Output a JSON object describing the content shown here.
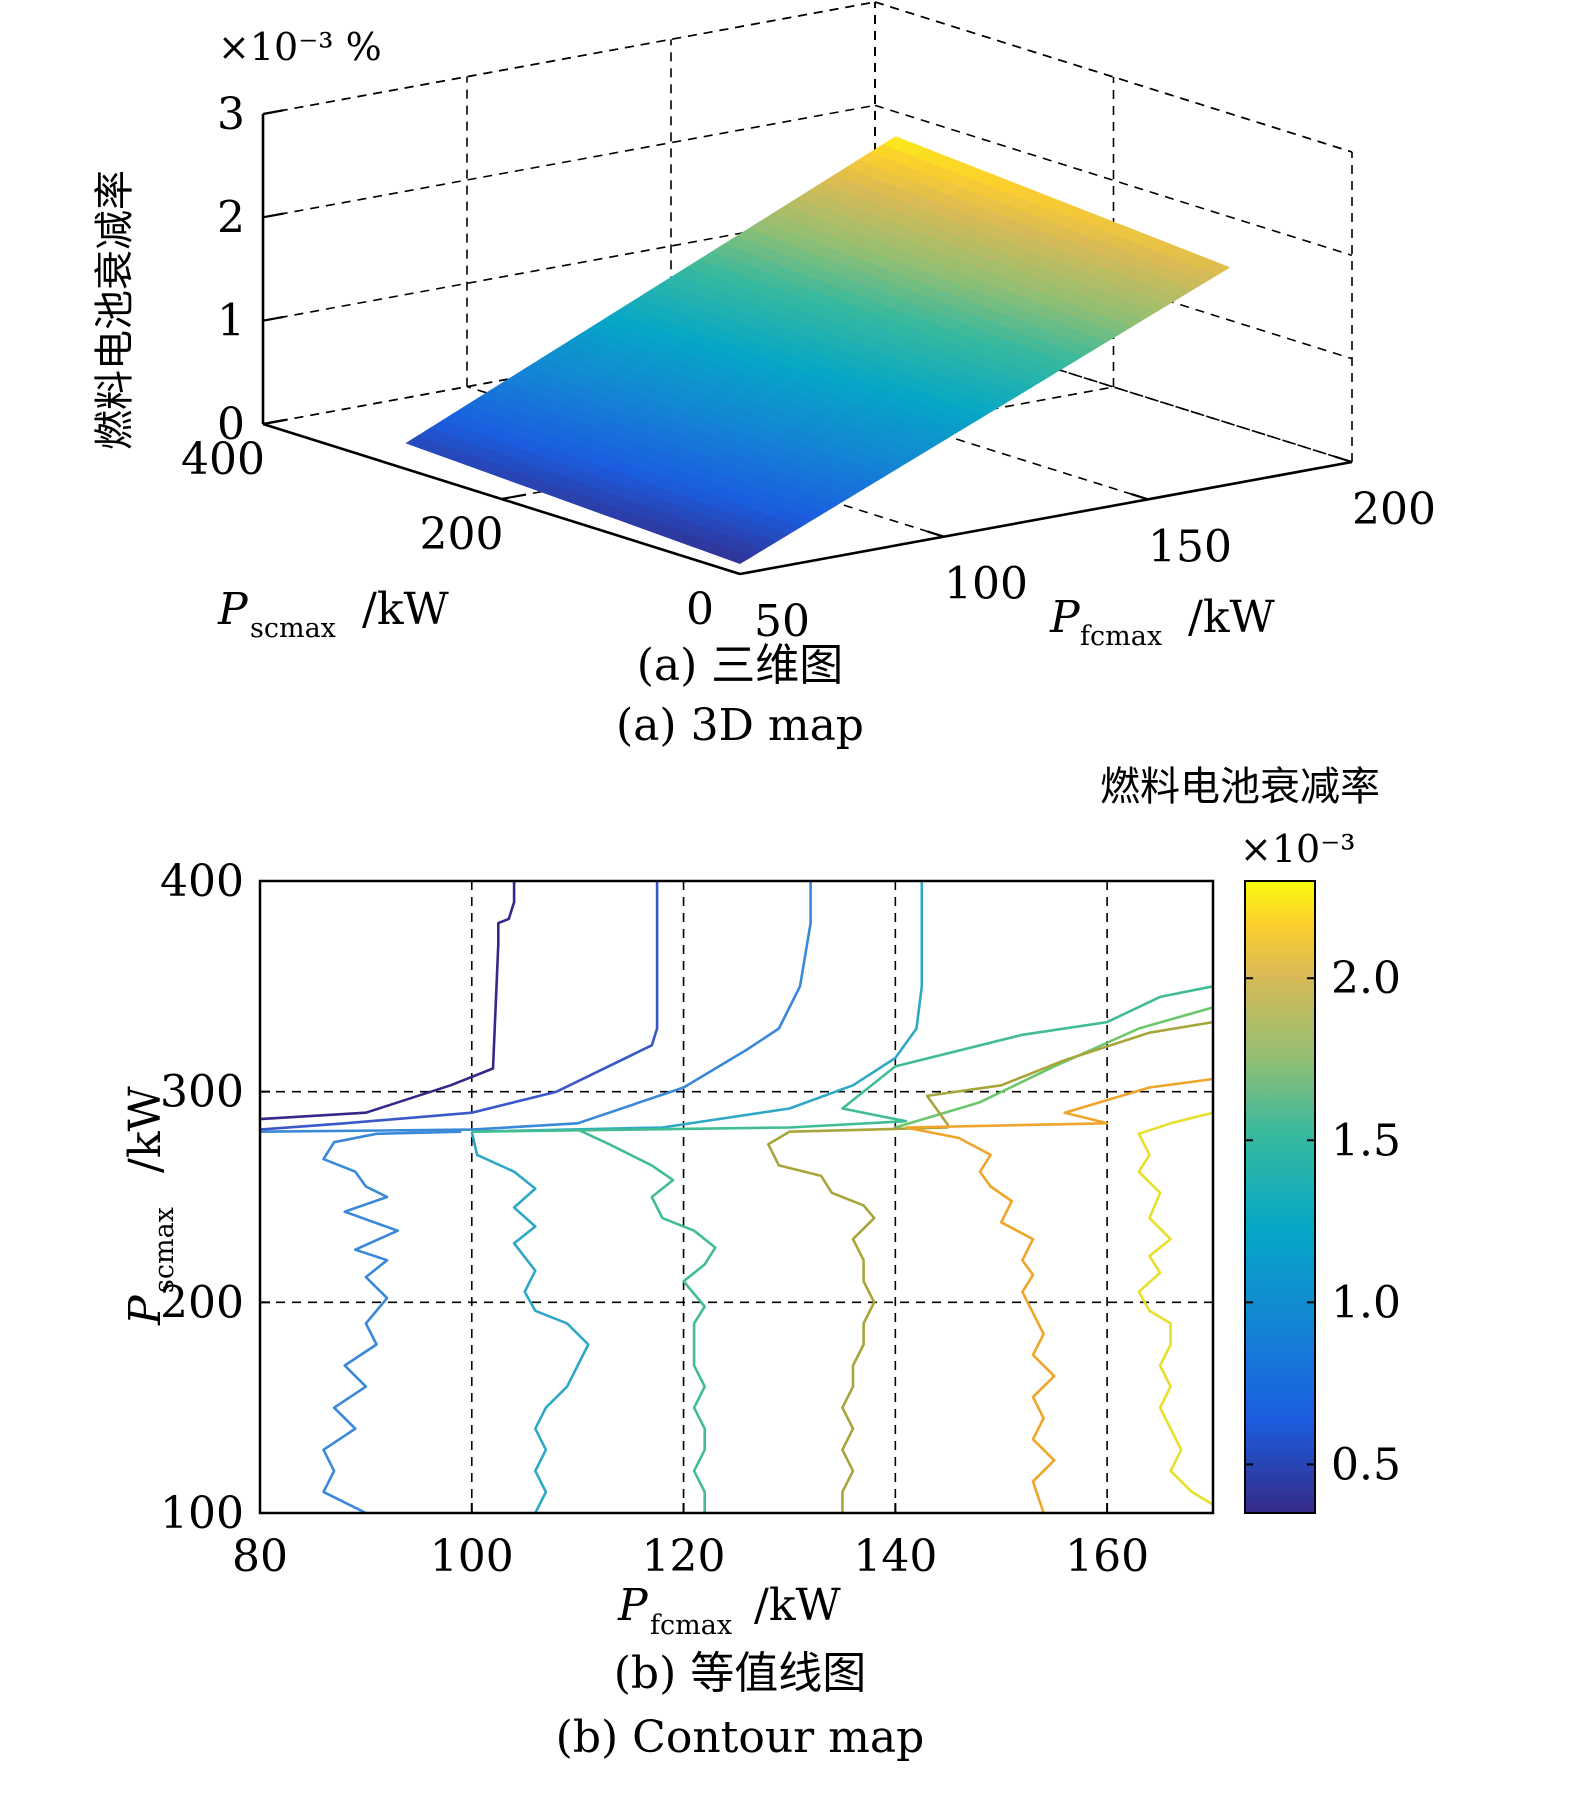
{
  "chart_data": [
    {
      "type": "surface",
      "zlabel": "燃料电池衰减率",
      "zunit": "×10⁻³ %",
      "xlabel": "P_fcmax /kW",
      "ylabel": "P_scmax /kW",
      "xlabel_main": "P",
      "xlabel_sub": "fcmax",
      "xlabel_unit": "/kW",
      "ylabel_main": "P",
      "ylabel_sub": "scmax",
      "ylabel_unit": "/kW",
      "x_ticks": [
        "50",
        "100",
        "150",
        "200"
      ],
      "y_ticks": [
        "0",
        "200",
        "400"
      ],
      "z_ticks": [
        "0",
        "1",
        "2",
        "3"
      ],
      "xlim": [
        50,
        200
      ],
      "ylim": [
        0,
        400
      ],
      "zlim": [
        0,
        3
      ],
      "grid": true,
      "caption_cn": "(a) 三维图",
      "caption_en": "(a) 3D map",
      "surface_corners": [
        {
          "x": 50,
          "y": 0,
          "z": 0.1
        },
        {
          "x": 50,
          "y": 280,
          "z": 0.25
        },
        {
          "x": 170,
          "y": 280,
          "z": 2.35
        },
        {
          "x": 170,
          "y": 0,
          "z": 2.1
        }
      ]
    },
    {
      "type": "contour",
      "colorbar_title": "燃料电池衰减率",
      "colorbar_scale": "×10⁻³",
      "colorbar_ticks": [
        "0.5",
        "1.0",
        "1.5",
        "2.0"
      ],
      "colorbar_range": [
        0.35,
        2.3
      ],
      "xlabel": "P_fcmax /kW",
      "ylabel": "P_scmax /kW",
      "xlabel_main": "P",
      "xlabel_sub": "fcmax",
      "xlabel_unit": "/kW",
      "ylabel_main": "P",
      "ylabel_sub": "scmax",
      "ylabel_unit": "/kW",
      "x_ticks": [
        "80",
        "100",
        "120",
        "140",
        "160"
      ],
      "y_ticks": [
        "100",
        "200",
        "300",
        "400"
      ],
      "xlim": [
        80,
        170
      ],
      "ylim": [
        100,
        400
      ],
      "grid": true,
      "caption_cn": "(b) 等值线图",
      "caption_en": "(b) Contour map",
      "series": [
        {
          "level": 0.45,
          "color": "#33298a",
          "points": [
            [
              80,
              287
            ],
            [
              90,
              290
            ],
            [
              98,
              303
            ],
            [
              102,
              311
            ],
            [
              102.5,
              370
            ],
            [
              102.5,
              380
            ],
            [
              103.5,
              382
            ],
            [
              104,
              390
            ],
            [
              104,
              400
            ]
          ]
        },
        {
          "level": 0.75,
          "color": "#3a58c8",
          "points": [
            [
              80,
              282
            ],
            [
              88,
              285
            ],
            [
              100,
              290
            ],
            [
              108,
              300
            ],
            [
              117,
              322
            ],
            [
              117.5,
              330
            ],
            [
              117.5,
              380
            ],
            [
              117.5,
              400
            ]
          ]
        },
        {
          "level": 0.95,
          "color": "#3a88d8",
          "points": [
            [
              80,
              281
            ],
            [
              100,
              282
            ],
            [
              110,
              285
            ],
            [
              120,
              302
            ],
            [
              126,
              320
            ],
            [
              129,
              330
            ],
            [
              131,
              350
            ],
            [
              132,
              380
            ],
            [
              132,
              400
            ]
          ],
          "points_low": [
            [
              99,
              281
            ],
            [
              91,
              280
            ],
            [
              87,
              276
            ],
            [
              86,
              268
            ],
            [
              89,
              262
            ],
            [
              90,
              255
            ],
            [
              92,
              250
            ],
            [
              88,
              243
            ],
            [
              93,
              234
            ],
            [
              89,
              225
            ],
            [
              92,
              220
            ],
            [
              90,
              212
            ],
            [
              92,
              202
            ],
            [
              90,
              190
            ],
            [
              91,
              180
            ],
            [
              88,
              170
            ],
            [
              90,
              160
            ],
            [
              87,
              150
            ],
            [
              89,
              140
            ],
            [
              86,
              130
            ],
            [
              87,
              120
            ],
            [
              86,
              110
            ],
            [
              90,
              100
            ]
          ]
        },
        {
          "level": 1.2,
          "color": "#2fa8c6",
          "points": [
            [
              100,
              281
            ],
            [
              118,
              283
            ],
            [
              130,
              292
            ],
            [
              136,
              303
            ],
            [
              140,
              316
            ],
            [
              142,
              330
            ],
            [
              142.5,
              350
            ],
            [
              142.5,
              400
            ]
          ],
          "points_low": [
            [
              100,
              281
            ],
            [
              100.5,
              270
            ],
            [
              104,
              262
            ],
            [
              106,
              254
            ],
            [
              104,
              245
            ],
            [
              106,
              236
            ],
            [
              104,
              228
            ],
            [
              106,
              215
            ],
            [
              105,
              205
            ],
            [
              106,
              196
            ],
            [
              109,
              190
            ],
            [
              111,
              180
            ],
            [
              110,
              170
            ],
            [
              109,
              160
            ],
            [
              107,
              150
            ],
            [
              106,
              140
            ],
            [
              107,
              130
            ],
            [
              106,
              120
            ],
            [
              107,
              110
            ],
            [
              106,
              100
            ]
          ]
        },
        {
          "level": 1.4,
          "color": "#40bd92",
          "points": [
            [
              100,
              281
            ],
            [
              130,
              283
            ],
            [
              141,
              286
            ],
            [
              135,
              292
            ],
            [
              140,
              312
            ],
            [
              152,
              327
            ],
            [
              160,
              333
            ],
            [
              165,
              345
            ],
            [
              170,
              350
            ]
          ],
          "points_low": [
            [
              110,
              282
            ],
            [
              113,
              275
            ],
            [
              117,
              265
            ],
            [
              119,
              258
            ],
            [
              117,
              250
            ],
            [
              118,
              240
            ],
            [
              121,
              234
            ],
            [
              123,
              226
            ],
            [
              122,
              218
            ],
            [
              120,
              210
            ],
            [
              122,
              198
            ],
            [
              121,
              190
            ],
            [
              121,
              180
            ],
            [
              121,
              170
            ],
            [
              122,
              160
            ],
            [
              121,
              150
            ],
            [
              122,
              140
            ],
            [
              122,
              130
            ],
            [
              121,
              120
            ],
            [
              122,
              110
            ],
            [
              122,
              100
            ]
          ]
        },
        {
          "level": 1.6,
          "color": "#6cc66b",
          "points": [
            [
              140,
              283
            ],
            [
              148,
              295
            ],
            [
              155,
              312
            ],
            [
              163,
              330
            ],
            [
              170,
              340
            ]
          ]
        },
        {
          "level": 1.75,
          "color": "#a7a53c",
          "points": [
            [
              145,
              284
            ],
            [
              143,
              298
            ],
            [
              150,
              303
            ],
            [
              156,
              315
            ],
            [
              164,
              328
            ],
            [
              170,
              333
            ]
          ],
          "points_low": [
            [
              145,
              283
            ],
            [
              130,
              281
            ],
            [
              128,
              275
            ],
            [
              129,
              265
            ],
            [
              133,
              260
            ],
            [
              134,
              252
            ],
            [
              137,
              246
            ],
            [
              138,
              240
            ],
            [
              136,
              230
            ],
            [
              137,
              220
            ],
            [
              137,
              210
            ],
            [
              138,
              200
            ],
            [
              137,
              190
            ],
            [
              137,
              180
            ],
            [
              136,
              170
            ],
            [
              136,
              160
            ],
            [
              135,
              150
            ],
            [
              136,
              140
            ],
            [
              135,
              130
            ],
            [
              136,
              120
            ],
            [
              135,
              110
            ],
            [
              135,
              100
            ]
          ]
        },
        {
          "level": 2.0,
          "color": "#f0a52a",
          "points": [
            [
              141,
              283
            ],
            [
              160,
              285
            ],
            [
              156,
              290
            ],
            [
              160,
              296
            ],
            [
              164,
              302
            ],
            [
              170,
              306
            ]
          ],
          "points_low": [
            [
              141,
              283
            ],
            [
              146,
              278
            ],
            [
              149,
              270
            ],
            [
              148,
              262
            ],
            [
              149,
              255
            ],
            [
              151,
              248
            ],
            [
              150,
              238
            ],
            [
              153,
              230
            ],
            [
              152,
              220
            ],
            [
              153,
              213
            ],
            [
              152,
              205
            ],
            [
              153,
              195
            ],
            [
              154,
              185
            ],
            [
              153,
              175
            ],
            [
              155,
              165
            ],
            [
              153,
              155
            ],
            [
              154,
              145
            ],
            [
              153,
              135
            ],
            [
              155,
              125
            ],
            [
              153,
              115
            ],
            [
              154,
              100
            ]
          ]
        },
        {
          "level": 2.25,
          "color": "#e6e02c",
          "points_low": [
            [
              170,
              290
            ],
            [
              166,
              285
            ],
            [
              163,
              280
            ],
            [
              164,
              270
            ],
            [
              163,
              262
            ],
            [
              165,
              252
            ],
            [
              164,
              240
            ],
            [
              166,
              230
            ],
            [
              164,
              222
            ],
            [
              165,
              214
            ],
            [
              163,
              205
            ],
            [
              164,
              196
            ],
            [
              166,
              190
            ],
            [
              166,
              180
            ],
            [
              165,
              170
            ],
            [
              166,
              160
            ],
            [
              165,
              150
            ],
            [
              166,
              140
            ],
            [
              167,
              130
            ],
            [
              166,
              120
            ],
            [
              168,
              110
            ],
            [
              170,
              104
            ]
          ]
        }
      ]
    }
  ]
}
